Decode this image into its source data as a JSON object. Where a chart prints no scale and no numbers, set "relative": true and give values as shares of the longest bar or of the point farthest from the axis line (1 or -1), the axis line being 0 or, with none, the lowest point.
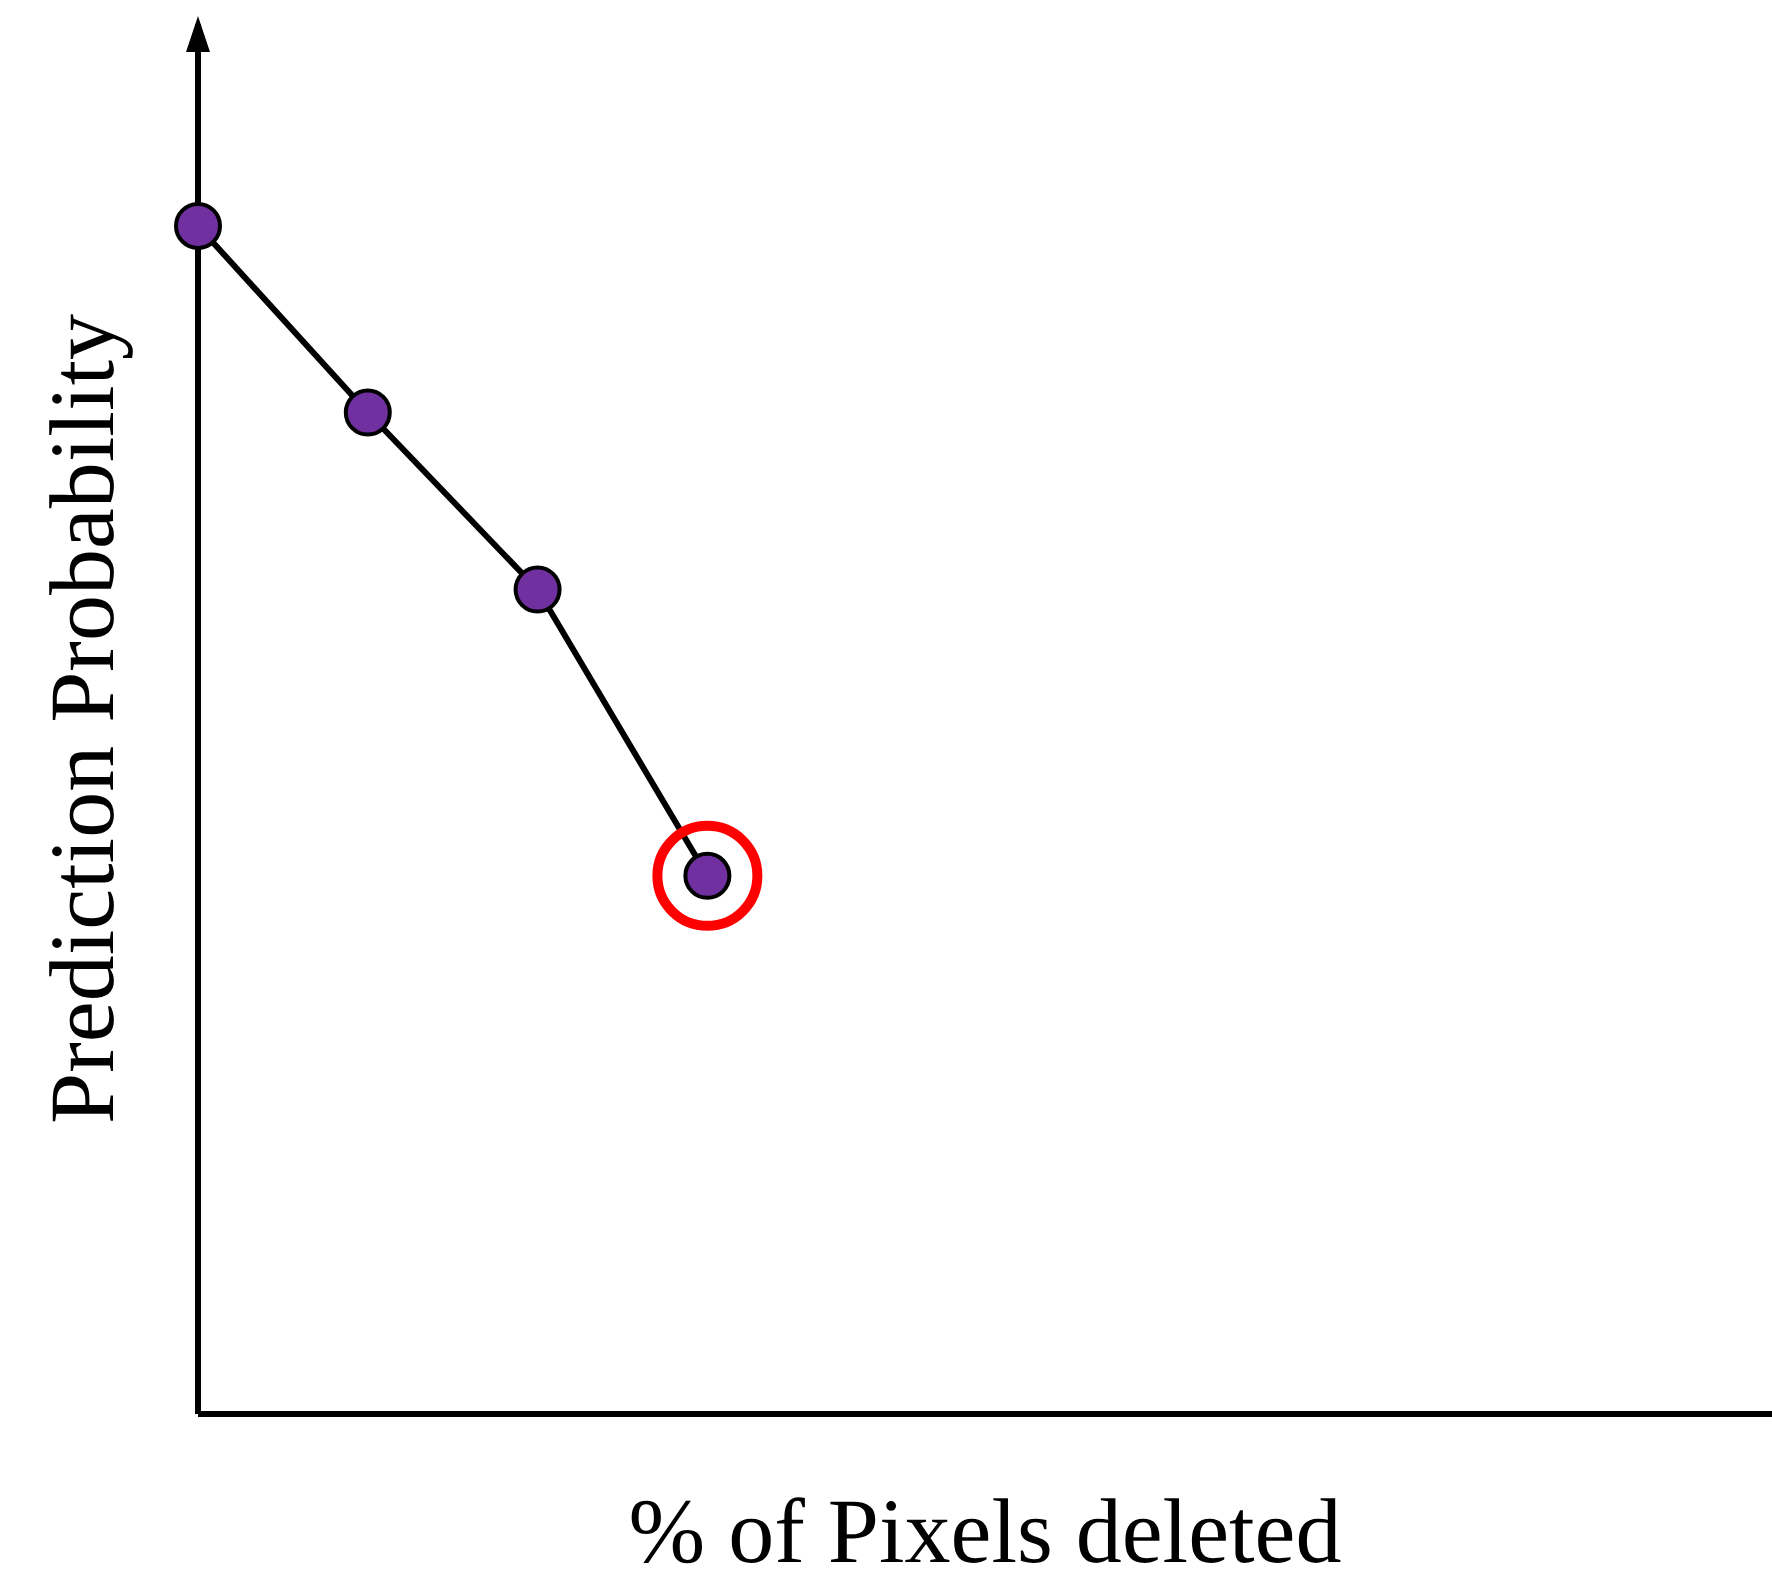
{
  "chart_data": {
    "type": "line",
    "relative": true,
    "xlabel": "% of Pixels deleted",
    "ylabel": "Prediction Probability",
    "categories": [
      null,
      null,
      null,
      null
    ],
    "series": [
      {
        "color": "#000000",
        "colors": [
          "#7030a0",
          "#7030a0",
          "#7030a0",
          "#7030a0"
        ],
        "values": [
          1,
          0.843,
          0.694,
          0.453
        ]
      }
    ],
    "marker": "circle",
    "line_style": "solid",
    "grid": false,
    "legend": false,
    "tick_labels": false
  }
}
